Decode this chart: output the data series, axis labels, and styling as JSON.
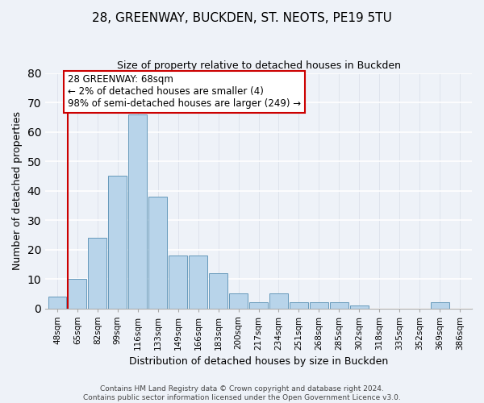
{
  "title": "28, GREENWAY, BUCKDEN, ST. NEOTS, PE19 5TU",
  "subtitle": "Size of property relative to detached houses in Buckden",
  "xlabel": "Distribution of detached houses by size in Buckden",
  "ylabel": "Number of detached properties",
  "bin_labels": [
    "48sqm",
    "65sqm",
    "82sqm",
    "99sqm",
    "116sqm",
    "133sqm",
    "149sqm",
    "166sqm",
    "183sqm",
    "200sqm",
    "217sqm",
    "234sqm",
    "251sqm",
    "268sqm",
    "285sqm",
    "302sqm",
    "318sqm",
    "335sqm",
    "352sqm",
    "369sqm",
    "386sqm"
  ],
  "bar_heights": [
    4,
    10,
    24,
    45,
    66,
    38,
    18,
    18,
    12,
    5,
    2,
    5,
    2,
    2,
    2,
    1,
    0,
    0,
    0,
    2,
    0
  ],
  "bar_color": "#b8d4ea",
  "bar_edge_color": "#6699bb",
  "vline_x_index": 1,
  "vline_color": "#cc0000",
  "ylim": [
    0,
    80
  ],
  "annotation_text_line1": "28 GREENWAY: 68sqm",
  "annotation_text_line2": "← 2% of detached houses are smaller (4)",
  "annotation_text_line3": "98% of semi-detached houses are larger (249) →",
  "annotation_box_color": "white",
  "annotation_box_edge_color": "#cc0000",
  "footer_line1": "Contains HM Land Registry data © Crown copyright and database right 2024.",
  "footer_line2": "Contains public sector information licensed under the Open Government Licence v3.0.",
  "bg_color": "#eef2f8",
  "grid_color": "#d8dde8",
  "title_fontsize": 11,
  "subtitle_fontsize": 9
}
